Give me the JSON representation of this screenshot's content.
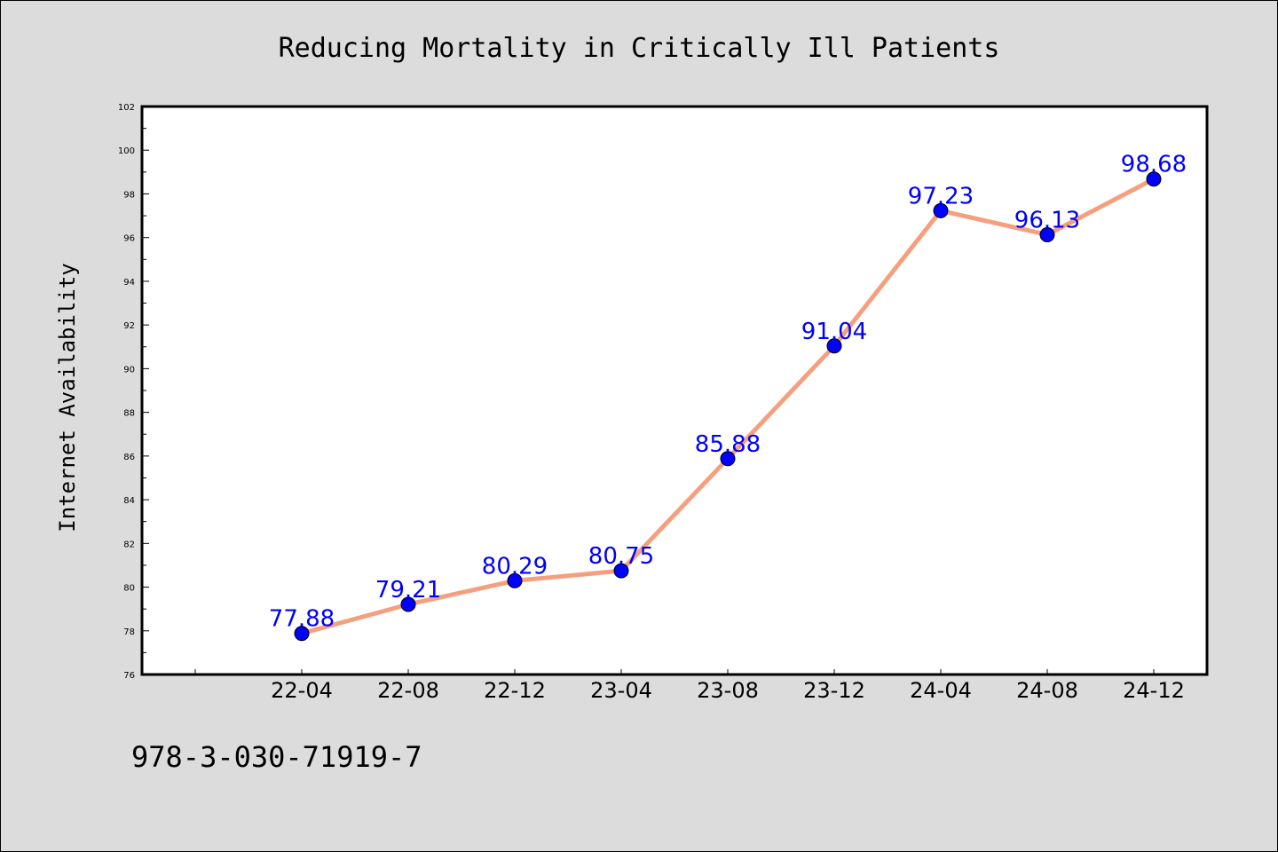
{
  "chart_data": {
    "type": "line",
    "title": "Reducing Mortality in Critically Ill Patients",
    "xlabel": "",
    "ylabel": "Internet Availability",
    "categories": [
      "22-04",
      "22-08",
      "22-12",
      "23-04",
      "23-08",
      "23-12",
      "24-04",
      "24-08",
      "24-12"
    ],
    "series": [
      {
        "values": [
          77.88,
          79.21,
          80.29,
          80.75,
          85.88,
          91.04,
          97.23,
          96.13,
          98.68
        ]
      }
    ],
    "data_labels": [
      "77.88",
      "79.21",
      "80.29",
      "80.75",
      "85.88",
      "91.04",
      "97.23",
      "96.13",
      "98.68"
    ],
    "ylim": [
      76,
      102
    ],
    "yticks": [
      "76",
      "78",
      "80",
      "82",
      "84",
      "86",
      "88",
      "90",
      "92",
      "94",
      "96",
      "98",
      "100",
      "102"
    ],
    "grid": false,
    "legend": "none",
    "colors": {
      "line": "#f4a07f",
      "marker": "#0000ff",
      "data_label": "#0000ff",
      "background": "#dcdcdc",
      "plot_area": "#ffffff"
    }
  },
  "footer": {
    "text": "978-3-030-71919-7"
  }
}
